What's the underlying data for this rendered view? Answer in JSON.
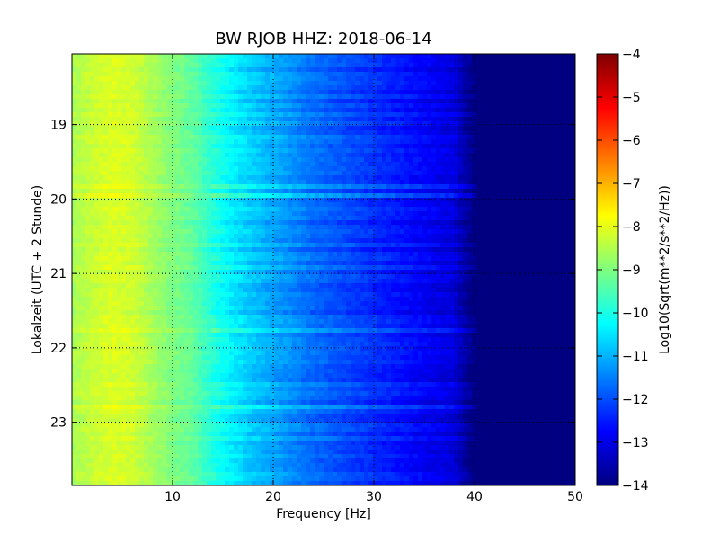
{
  "chart_data": {
    "type": "heatmap",
    "title": "BW RJOB HHZ: 2018-06-14",
    "xlabel": "Frequency [Hz]",
    "ylabel": "Lokalzeit (UTC + 2 Stunde)",
    "xlim": [
      0,
      50
    ],
    "ylim": [
      23.85,
      18.05
    ],
    "x_ticks": [
      10,
      20,
      30,
      40,
      50
    ],
    "x_tick_labels": [
      "10",
      "20",
      "30",
      "40",
      "50"
    ],
    "y_ticks": [
      19,
      20,
      21,
      22,
      23
    ],
    "y_tick_labels": [
      "19",
      "20",
      "21",
      "22",
      "23"
    ],
    "grid": true,
    "colormap": "jet",
    "colorbar": {
      "label": "Log10(Sqrt(m**2/s**2/Hz))",
      "vmin": -14,
      "vmax": -4,
      "ticks": [
        -4,
        -5,
        -6,
        -7,
        -8,
        -9,
        -10,
        -11,
        -12,
        -13,
        -14
      ],
      "tick_labels": [
        "−4",
        "−5",
        "−6",
        "−7",
        "−8",
        "−9",
        "−10",
        "−11",
        "−12",
        "−13",
        "−14"
      ]
    },
    "approx_level_profile": {
      "frequency_hz": [
        0,
        2,
        4,
        6,
        8,
        10,
        12,
        14,
        16,
        18,
        20,
        22,
        24,
        26,
        28,
        30,
        32,
        34,
        36,
        38,
        39,
        40,
        45,
        50
      ],
      "log10_value": [
        -8.6,
        -8.3,
        -8.1,
        -8.2,
        -8.6,
        -9.0,
        -9.3,
        -9.9,
        -10.4,
        -10.8,
        -11.1,
        -11.4,
        -11.7,
        -11.9,
        -12.1,
        -12.3,
        -12.5,
        -12.7,
        -12.9,
        -13.1,
        -13.6,
        -14,
        -14,
        -14
      ]
    }
  }
}
